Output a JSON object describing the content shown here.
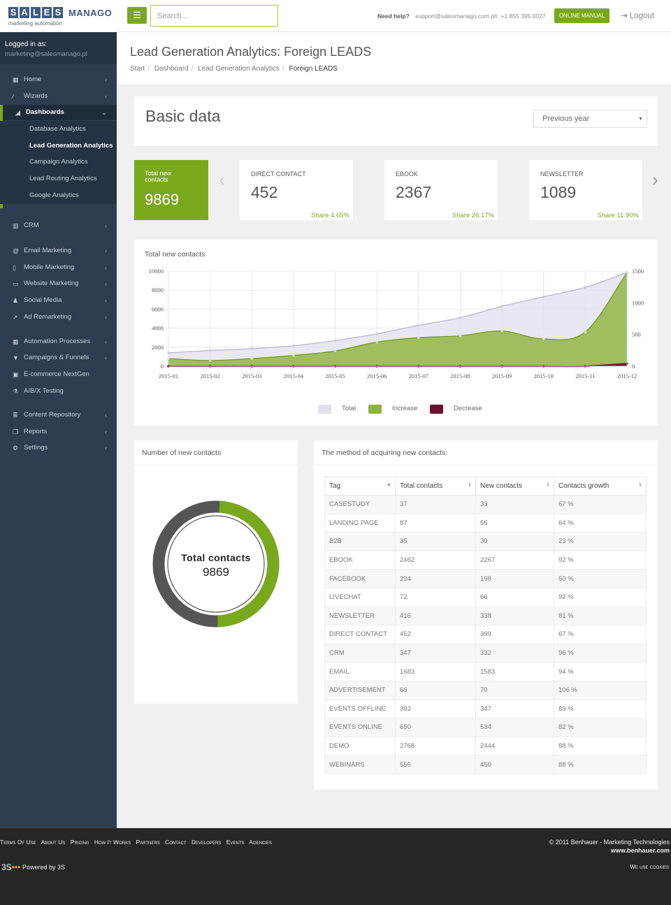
{
  "brand": {
    "letters": [
      "S",
      "A",
      "L",
      "E",
      "S"
    ],
    "name": "MANAGO",
    "tagline": "marketing automation"
  },
  "topbar": {
    "menu_icon": "hamburger-icon",
    "search_placeholder": "Search...",
    "help_label": "Need help?",
    "help_contact": "support@salesmanago.com ph: +1 855 395 0027",
    "manual_label": "ONLINE MANUAL",
    "logout_label": "Logout"
  },
  "user": {
    "label": "Logged in as:",
    "email": "marketing@salesmanago.pl"
  },
  "sidebar": {
    "items": [
      {
        "label": "Home",
        "icon": "grid-icon"
      },
      {
        "label": "Wizards",
        "icon": "wand-icon"
      },
      {
        "label": "Dashboards",
        "icon": "area-chart-icon"
      },
      {
        "label": "CRM",
        "icon": "bar-chart-icon"
      },
      {
        "label": "Email Marketing",
        "icon": "at-icon"
      },
      {
        "label": "Mobile Marketing",
        "icon": "mobile-icon"
      },
      {
        "label": "Website Marketing",
        "icon": "laptop-icon"
      },
      {
        "label": "Social Media",
        "icon": "users-icon"
      },
      {
        "label": "Ad Remarketing",
        "icon": "line-chart-icon"
      },
      {
        "label": "Automation Processes",
        "icon": "grid-icon"
      },
      {
        "label": "Campaigns & Funnels",
        "icon": "filter-icon"
      },
      {
        "label": "E-commerce NextGen",
        "icon": "lock-icon"
      },
      {
        "label": "A/B/X Testing",
        "icon": "flask-icon"
      },
      {
        "label": "Content Repository",
        "icon": "database-icon"
      },
      {
        "label": "Reports",
        "icon": "copy-icon"
      },
      {
        "label": "Settings",
        "icon": "gears-icon"
      }
    ],
    "dashboard_subitems": [
      "Database Analytics",
      "Lead Generation Analytics",
      "Campaign Analytics",
      "Lead Routing Analytics",
      "Google Analytics"
    ]
  },
  "page": {
    "title": "Lead Generation Analytics: Foreign LEADS",
    "breadcrumb": [
      "Start",
      "Dashboard",
      "Lead Generation Analytics",
      "Foreign LEADS"
    ]
  },
  "basic": {
    "title": "Basic data",
    "period": "Previous year"
  },
  "tiles": {
    "total": {
      "label": "Total new contacts",
      "value": "9869"
    },
    "stats": [
      {
        "label": "DIRECT CONTACT",
        "value": "452",
        "share": "Share 4.65%"
      },
      {
        "label": "EBOOK",
        "value": "2367",
        "share": "Share 26.17%"
      },
      {
        "label": "NEWSLETTER",
        "value": "1089",
        "share": "Share 11.90%"
      }
    ]
  },
  "chart_data": {
    "type": "area",
    "title": "Total new contacts",
    "categories": [
      "2015-01",
      "2015-02",
      "2015-03",
      "2015-04",
      "2015-05",
      "2015-06",
      "2015-07",
      "2015-08",
      "2015-09",
      "2015-10",
      "2015-11",
      "2015-12"
    ],
    "series": [
      {
        "name": "Total",
        "axis": "left",
        "color": "#e1e0ee",
        "values": [
          1400,
          1650,
          1850,
          2150,
          2700,
          3400,
          4300,
          5100,
          6300,
          7300,
          8300,
          9869
        ]
      },
      {
        "name": "Increase",
        "axis": "right",
        "color": "#8db33a",
        "values": [
          120,
          90,
          120,
          170,
          240,
          380,
          450,
          480,
          555,
          430,
          540,
          1480
        ]
      },
      {
        "name": "Decrease",
        "axis": "right",
        "color": "#6d0f2e",
        "values": [
          0,
          0,
          0,
          0,
          0,
          0,
          0,
          0,
          0,
          0,
          0,
          40
        ]
      }
    ],
    "yleft_ticks": [
      "10000",
      "8000",
      "6000",
      "4000",
      "2000",
      "0"
    ],
    "yleft_lim": [
      0,
      10000
    ],
    "yright_ticks": [
      "1500",
      "1000",
      "500",
      "0"
    ],
    "yright_lim": [
      0,
      1500
    ],
    "legend_position": "bottom",
    "grid": true
  },
  "donut": {
    "title": "Number of new contacts",
    "label": "Total contacts",
    "value": "9869",
    "segments": [
      {
        "fraction": 0.5,
        "color": "#7aa81c"
      },
      {
        "fraction": 0.5,
        "color": "#555555"
      }
    ]
  },
  "table": {
    "title": "The method of acquiring new contacts:",
    "headers": [
      "Tag",
      "Total contacts",
      "New contacts",
      "Contacts growth"
    ],
    "rows": [
      [
        "CASESTUDY",
        "37",
        "33",
        "67 %"
      ],
      [
        "LANDING PAGE",
        "87",
        "56",
        "64 %"
      ],
      [
        "B2B",
        "35",
        "30",
        "23 %"
      ],
      [
        "EBOOK",
        "2462",
        "2267",
        "92 %"
      ],
      [
        "FACEBOOK",
        "234",
        "198",
        "50 %"
      ],
      [
        "LIVECHAT",
        "72",
        "66",
        "92 %"
      ],
      [
        "NEWSLETTER",
        "416",
        "338",
        "81 %"
      ],
      [
        "DIRECT CONTACT",
        "452",
        "399",
        "67 %"
      ],
      [
        "CRM",
        "347",
        "332",
        "96 %"
      ],
      [
        "EMAIL",
        "1683",
        "1583",
        "94 %"
      ],
      [
        "ADVERTISEMENT",
        "66",
        "70",
        "106 %"
      ],
      [
        "EVENTS OFFLINE",
        "392",
        "347",
        "89 %"
      ],
      [
        "EVENTS ONLINE",
        "650",
        "534",
        "82 %"
      ],
      [
        "DEMO",
        "2768",
        "2444",
        "88 %"
      ],
      [
        "WEBINARS",
        "556",
        "450",
        "88 %"
      ]
    ]
  },
  "footer": {
    "links": [
      "Terms Of Use",
      "About Us",
      "Pricing",
      "How It Works",
      "Partners",
      "Contact",
      "Developers",
      "Events",
      "Agencies"
    ],
    "copyright": "© 2011 Benhauer - Marketing Technologies",
    "website": "www.benhauer.com",
    "logo": "3S",
    "powered": "Powered by 3S",
    "cookies": "We use cookies"
  },
  "colors": {
    "accent": "#7aa81c",
    "sidebar": "#2c3e50",
    "footer": "#262626"
  }
}
